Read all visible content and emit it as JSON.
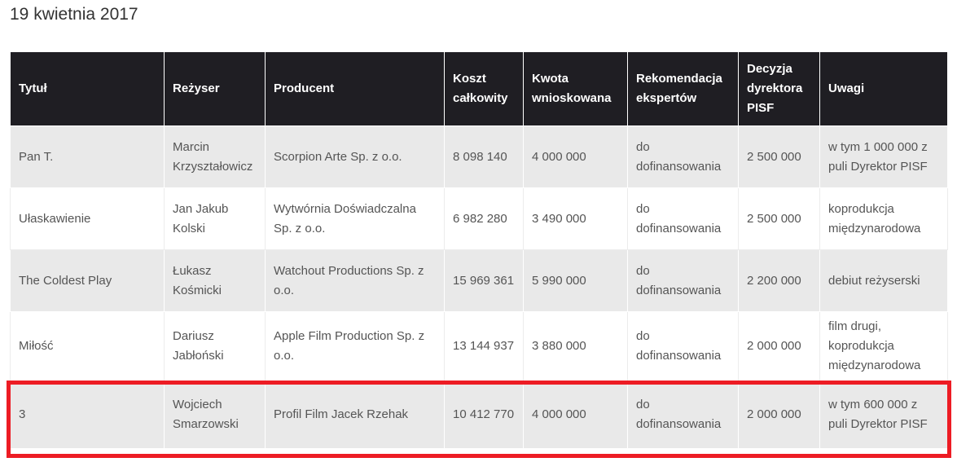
{
  "title": "19 kwietnia 2017",
  "columns": [
    "Tytuł",
    "Reżyser",
    "Producent",
    "Koszt całkowity",
    "Kwota wnioskowana",
    "Rekomendacja ekspertów",
    "Decyzja dyrektora PISF",
    "Uwagi"
  ],
  "rows": [
    [
      "Pan T.",
      "Marcin Krzyształowicz",
      "Scorpion Arte Sp. z o.o.",
      "8 098 140",
      "4 000 000",
      "do dofinansowania",
      "2 500 000",
      "w tym 1 000 000 z puli Dyrektor PISF"
    ],
    [
      "Ułaskawienie",
      "Jan Jakub Kolski",
      "Wytwórnia Doświadczalna Sp. z o.o.",
      "6 982 280",
      "3 490 000",
      "do dofinansowania",
      "2 500 000",
      "koprodukcja międzynarodowa"
    ],
    [
      "The Coldest Play",
      "Łukasz Kośmicki",
      "Watchout Productions Sp. z o.o.",
      "15 969 361",
      "5 990 000",
      "do dofinansowania",
      "2 200 000",
      "debiut reżyserski"
    ],
    [
      "Miłość",
      "Dariusz Jabłoński",
      "Apple Film Production Sp. z o.o.",
      "13 144 937",
      "3 880 000",
      "do dofinansowania",
      "2 000 000",
      "film drugi, koprodukcja międzynarodowa"
    ],
    [
      "3",
      "Wojciech Smarzowski",
      "Profil Film Jacek Rzehak",
      "10 412 770",
      "4 000 000",
      "do dofinansowania",
      "2 000 000",
      "w tym 600 000 z puli Dyrektor PISF"
    ]
  ],
  "highlighted_row": 4,
  "highlight_color": "#ed1c24"
}
